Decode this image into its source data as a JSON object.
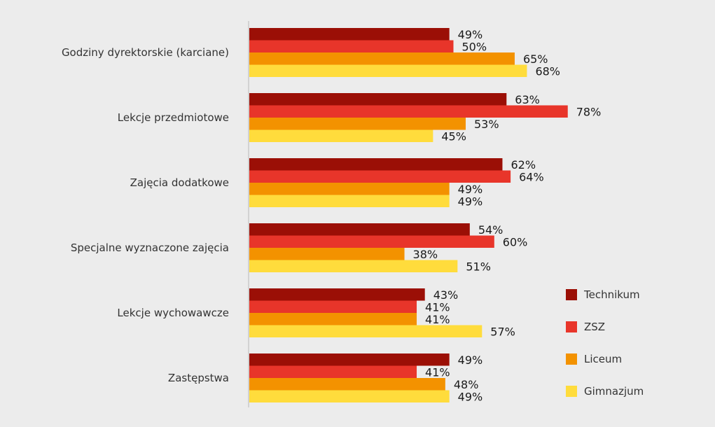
{
  "chart_data": {
    "type": "bar",
    "orientation": "horizontal",
    "title": "",
    "xlabel": "",
    "ylabel": "",
    "xlim": [
      0,
      100
    ],
    "grid": false,
    "legend_position": "right",
    "categories": [
      "Godziny dyrektorskie (karciane)",
      "Lekcje przedmiotowe",
      "Zajęcia dodatkowe",
      "Specjalne wyznaczone zajęcia",
      "Lekcje wychowawcze",
      "Zastępstwa"
    ],
    "series": [
      {
        "name": "Technikum",
        "color": "#9b0f06",
        "values": [
          49,
          63,
          62,
          54,
          43,
          49
        ]
      },
      {
        "name": "ZSZ",
        "color": "#e8352a",
        "values": [
          50,
          78,
          64,
          60,
          41,
          41
        ]
      },
      {
        "name": "Liceum",
        "color": "#f39200",
        "values": [
          65,
          53,
          49,
          38,
          41,
          48
        ]
      },
      {
        "name": "Gimnazjum",
        "color": "#ffdc3c",
        "values": [
          68,
          45,
          49,
          51,
          57,
          49
        ]
      }
    ],
    "value_suffix": "%"
  }
}
